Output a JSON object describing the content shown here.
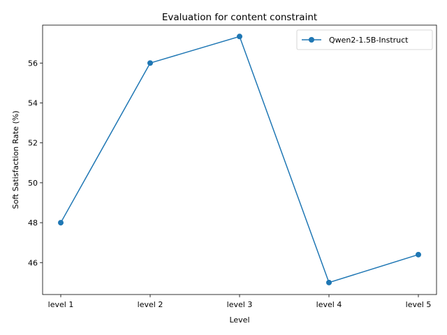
{
  "chart_data": {
    "type": "line",
    "title": "Evaluation for content constraint",
    "xlabel": "Level",
    "ylabel": "Soft Satisfaction Rate (%)",
    "categories": [
      "level 1",
      "level 2",
      "level 3",
      "level 4",
      "level 5"
    ],
    "series": [
      {
        "name": "Qwen2-1.5B-Instruct",
        "values": [
          48.0,
          56.0,
          57.33,
          45.0,
          46.4
        ],
        "color": "#1f77b4"
      }
    ],
    "yticks": [
      46,
      48,
      50,
      52,
      54,
      56
    ],
    "ylim": [
      44.4,
      57.9
    ],
    "grid": false,
    "legend": "top-right"
  }
}
